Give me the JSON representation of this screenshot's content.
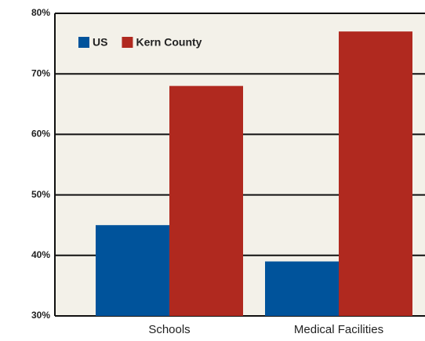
{
  "chart_data": {
    "type": "bar",
    "categories": [
      "Schools",
      "Medical Facilities"
    ],
    "series": [
      {
        "name": "US",
        "color": "#00539b",
        "values": [
          45,
          39
        ]
      },
      {
        "name": "Kern County",
        "color": "#b0291f",
        "values": [
          68,
          77
        ]
      }
    ],
    "ylim": [
      30,
      80
    ],
    "yticks": [
      {
        "value": 30,
        "label": "30%"
      },
      {
        "value": 40,
        "label": "40%"
      },
      {
        "value": 50,
        "label": "50%"
      },
      {
        "value": 60,
        "label": "60%"
      },
      {
        "value": 70,
        "label": "70%"
      },
      {
        "value": 80,
        "label": "80%"
      }
    ],
    "grid": true,
    "legend": "top-left"
  }
}
